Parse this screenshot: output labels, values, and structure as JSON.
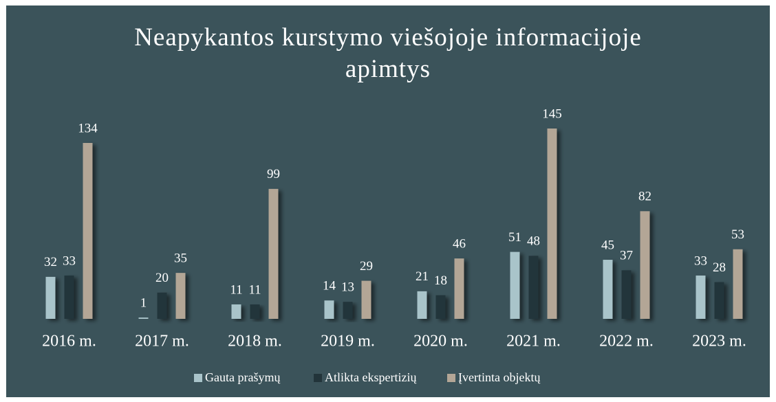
{
  "chart_data": {
    "type": "bar",
    "title": "Neapykantos kurstymo viešojoje informacijoje apimtys",
    "categories": [
      "2016 m.",
      "2017 m.",
      "2018 m.",
      "2019 m.",
      "2020 m.",
      "2021 m.",
      "2022 m.",
      "2023 m."
    ],
    "series": [
      {
        "name": "Gauta prašymų",
        "color": "#a9c4ca",
        "values": [
          32,
          1,
          11,
          14,
          21,
          51,
          45,
          33
        ]
      },
      {
        "name": "Atlikta ekspertizių",
        "color": "#22343a",
        "values": [
          33,
          20,
          11,
          13,
          18,
          48,
          37,
          28
        ]
      },
      {
        "name": "Įvertinta objektų",
        "color": "#b3a696",
        "values": [
          134,
          35,
          99,
          29,
          46,
          145,
          82,
          53
        ]
      }
    ],
    "legend": "bottom"
  }
}
